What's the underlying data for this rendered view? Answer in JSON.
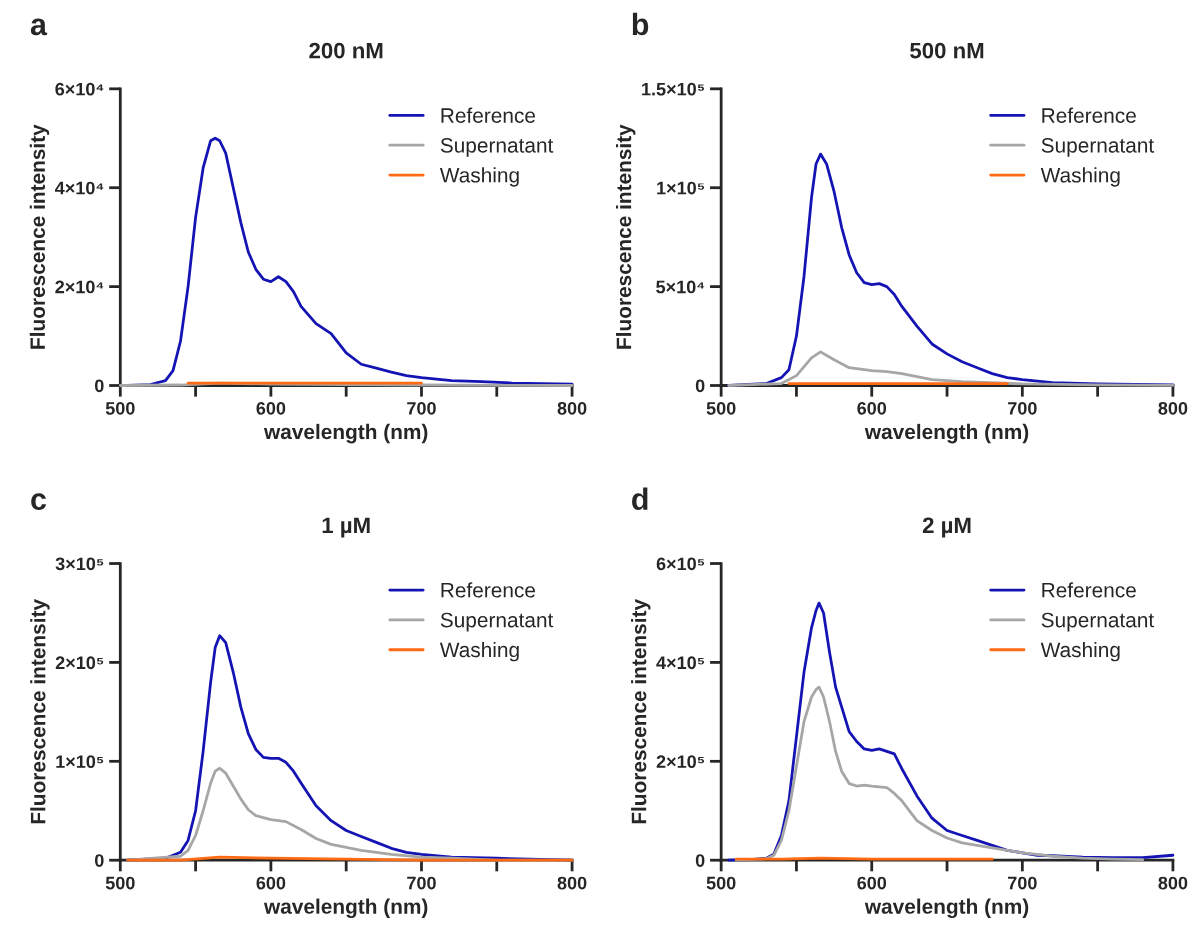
{
  "chart_data": [
    {
      "type": "line",
      "title": "200 nM",
      "xlabel": "wavelength (nm)",
      "ylabel": "Fluorescence intensity",
      "annotations": [
        "a"
      ],
      "xlim": [
        500,
        800
      ],
      "xticks": [
        500,
        {
          "value": 550,
          "label": null
        },
        600,
        {
          "value": 650,
          "label": null
        },
        700,
        {
          "value": 750,
          "label": null
        },
        800
      ],
      "ylim": [
        0,
        60000
      ],
      "yticks": [
        {
          "value": 0,
          "label": "0"
        },
        {
          "value": 20000,
          "label": "2×10⁴"
        },
        {
          "value": 40000,
          "label": "4×10⁴"
        },
        {
          "value": 60000,
          "label": "6×10⁴"
        }
      ],
      "legend": "top right",
      "grid": false,
      "line_style": "solid",
      "marker": "none",
      "series": [
        {
          "name": "Reference",
          "color": "#1414b4",
          "x": [
            505,
            520,
            530,
            535,
            540,
            545,
            550,
            555,
            560,
            563,
            566,
            570,
            575,
            580,
            585,
            590,
            595,
            600,
            605,
            610,
            615,
            620,
            630,
            640,
            650,
            660,
            670,
            680,
            690,
            700,
            720,
            740,
            760,
            780,
            800
          ],
          "values": [
            0,
            200,
            1000,
            3000,
            9000,
            20000,
            34000,
            44000,
            49500,
            50000,
            49500,
            47000,
            40000,
            33000,
            27000,
            23500,
            21500,
            21000,
            22000,
            21000,
            19000,
            16000,
            12500,
            10500,
            6600,
            4300,
            3500,
            2700,
            2000,
            1600,
            1000,
            800,
            500,
            400,
            300
          ]
        },
        {
          "name": "Supernatant",
          "color": "#a6a6a6",
          "x": [
            500,
            540,
            565,
            600,
            700,
            800
          ],
          "values": [
            0,
            100,
            500,
            300,
            100,
            0
          ]
        },
        {
          "name": "Washing",
          "color": "#ff6a14",
          "x": [
            545,
            565,
            600,
            650,
            700
          ],
          "values": [
            500,
            500,
            500,
            500,
            500
          ]
        }
      ]
    },
    {
      "type": "line",
      "title": "500 nM",
      "xlabel": "wavelength (nm)",
      "ylabel": "Fluorescence intensity",
      "annotations": [
        "b"
      ],
      "xlim": [
        500,
        800
      ],
      "xticks": [
        500,
        {
          "value": 550,
          "label": null
        },
        600,
        {
          "value": 650,
          "label": null
        },
        700,
        {
          "value": 750,
          "label": null
        },
        800
      ],
      "ylim": [
        0,
        150000
      ],
      "yticks": [
        {
          "value": 0,
          "label": "0"
        },
        {
          "value": 50000,
          "label": "5×10⁴"
        },
        {
          "value": 100000,
          "label": "1×10⁵"
        },
        {
          "value": 150000,
          "label": "1.5×10⁵"
        }
      ],
      "legend": "top right",
      "grid": false,
      "line_style": "solid",
      "marker": "none",
      "series": [
        {
          "name": "Reference",
          "color": "#1414b4",
          "x": [
            505,
            530,
            540,
            545,
            550,
            555,
            560,
            563,
            566,
            570,
            575,
            580,
            585,
            590,
            595,
            600,
            605,
            610,
            615,
            620,
            630,
            640,
            650,
            660,
            670,
            680,
            690,
            700,
            720,
            750,
            800
          ],
          "values": [
            0,
            1000,
            4000,
            8000,
            25000,
            55000,
            95000,
            112000,
            117000,
            112000,
            98000,
            80000,
            66000,
            57000,
            52000,
            51000,
            51500,
            50000,
            46000,
            40000,
            30000,
            21000,
            16000,
            12000,
            9000,
            6000,
            4000,
            3000,
            1500,
            800,
            300
          ]
        },
        {
          "name": "Supernatant",
          "color": "#a6a6a6",
          "x": [
            505,
            540,
            550,
            560,
            566,
            575,
            585,
            600,
            610,
            620,
            640,
            660,
            700,
            750,
            800
          ],
          "values": [
            0,
            1000,
            5000,
            14000,
            17000,
            13000,
            9000,
            7500,
            7000,
            6000,
            3000,
            2000,
            800,
            300,
            100
          ]
        },
        {
          "name": "Washing",
          "color": "#ff6a14",
          "x": [
            545,
            566,
            600,
            650,
            690
          ],
          "values": [
            1000,
            1000,
            1000,
            1000,
            1000
          ]
        }
      ]
    },
    {
      "type": "line",
      "title": "1 µM",
      "xlabel": "wavelength (nm)",
      "ylabel": "Fluorescence intensity",
      "annotations": [
        "c"
      ],
      "xlim": [
        500,
        800
      ],
      "xticks": [
        500,
        {
          "value": 550,
          "label": null
        },
        600,
        {
          "value": 650,
          "label": null
        },
        700,
        {
          "value": 750,
          "label": null
        },
        800
      ],
      "ylim": [
        0,
        300000
      ],
      "yticks": [
        {
          "value": 0,
          "label": "0"
        },
        {
          "value": 100000,
          "label": "1×10⁵"
        },
        {
          "value": 200000,
          "label": "2×10⁵"
        },
        {
          "value": 300000,
          "label": "3×10⁵"
        }
      ],
      "legend": "top right",
      "grid": false,
      "line_style": "solid",
      "marker": "none",
      "series": [
        {
          "name": "Reference",
          "color": "#1414b4",
          "x": [
            505,
            530,
            540,
            545,
            550,
            555,
            560,
            563,
            566,
            570,
            575,
            580,
            585,
            590,
            595,
            600,
            605,
            610,
            615,
            620,
            630,
            640,
            650,
            660,
            670,
            680,
            690,
            700,
            720,
            750,
            800
          ],
          "values": [
            0,
            2000,
            8000,
            20000,
            50000,
            110000,
            180000,
            215000,
            227000,
            220000,
            190000,
            155000,
            128000,
            112000,
            104000,
            103000,
            103000,
            99000,
            90000,
            78000,
            55000,
            40000,
            30000,
            24000,
            18000,
            12000,
            8000,
            6000,
            3000,
            2000,
            0
          ]
        },
        {
          "name": "Supernatant",
          "color": "#a6a6a6",
          "x": [
            505,
            540,
            545,
            550,
            555,
            560,
            563,
            566,
            570,
            575,
            580,
            585,
            590,
            600,
            610,
            620,
            630,
            640,
            660,
            680,
            700,
            720,
            750,
            800
          ],
          "values": [
            0,
            4000,
            10000,
            25000,
            50000,
            78000,
            90000,
            93000,
            88000,
            75000,
            62000,
            51000,
            45000,
            41000,
            39000,
            31000,
            22000,
            16000,
            10000,
            6000,
            3000,
            2000,
            0,
            0
          ]
        },
        {
          "name": "Washing",
          "color": "#ff6a14",
          "x": [
            505,
            540,
            566,
            600,
            700,
            800
          ],
          "values": [
            0,
            0,
            3000,
            2000,
            0,
            0
          ]
        }
      ]
    },
    {
      "type": "line",
      "title": "2 µM",
      "xlabel": "wavelength (nm)",
      "ylabel": "Fluorescence intensity",
      "annotations": [
        "d"
      ],
      "xlim": [
        500,
        800
      ],
      "xticks": [
        500,
        {
          "value": 550,
          "label": null
        },
        600,
        {
          "value": 650,
          "label": null
        },
        700,
        {
          "value": 750,
          "label": null
        },
        800
      ],
      "ylim": [
        0,
        600000
      ],
      "yticks": [
        {
          "value": 0,
          "label": "0"
        },
        {
          "value": 200000,
          "label": "2×10⁵"
        },
        {
          "value": 400000,
          "label": "4×10⁵"
        },
        {
          "value": 600000,
          "label": "6×10⁵"
        }
      ],
      "legend": "top right",
      "grid": false,
      "line_style": "solid",
      "marker": "none",
      "series": [
        {
          "name": "Reference",
          "color": "#1414b4",
          "x": [
            505,
            520,
            530,
            535,
            540,
            545,
            550,
            555,
            560,
            563,
            565,
            568,
            572,
            576,
            580,
            585,
            590,
            595,
            600,
            605,
            610,
            615,
            620,
            630,
            640,
            650,
            660,
            670,
            680,
            690,
            700,
            710,
            720,
            740,
            760,
            780,
            800
          ],
          "values": [
            0,
            1000,
            4000,
            12000,
            50000,
            120000,
            250000,
            380000,
            470000,
            505000,
            520000,
            500000,
            420000,
            350000,
            310000,
            260000,
            240000,
            225000,
            222000,
            225000,
            220000,
            215000,
            185000,
            130000,
            85000,
            60000,
            50000,
            40000,
            30000,
            20000,
            15000,
            10000,
            9000,
            6000,
            5000,
            5000,
            10000
          ]
        },
        {
          "name": "Supernatant",
          "color": "#a6a6a6",
          "x": [
            510,
            530,
            535,
            540,
            545,
            550,
            555,
            560,
            563,
            565,
            568,
            572,
            576,
            580,
            585,
            590,
            595,
            600,
            610,
            615,
            620,
            630,
            640,
            650,
            660,
            670,
            680,
            690,
            700,
            720,
            740,
            760,
            780
          ],
          "values": [
            0,
            3000,
            10000,
            40000,
            100000,
            190000,
            280000,
            330000,
            345000,
            350000,
            330000,
            280000,
            220000,
            180000,
            155000,
            150000,
            152000,
            150000,
            147000,
            135000,
            120000,
            80000,
            60000,
            45000,
            35000,
            30000,
            25000,
            20000,
            15000,
            8000,
            4000,
            2000,
            1000
          ]
        },
        {
          "name": "Washing",
          "color": "#ff6a14",
          "x": [
            510,
            540,
            566,
            600,
            640,
            680
          ],
          "values": [
            2000,
            2000,
            4000,
            2000,
            2000,
            2000
          ]
        }
      ]
    }
  ]
}
